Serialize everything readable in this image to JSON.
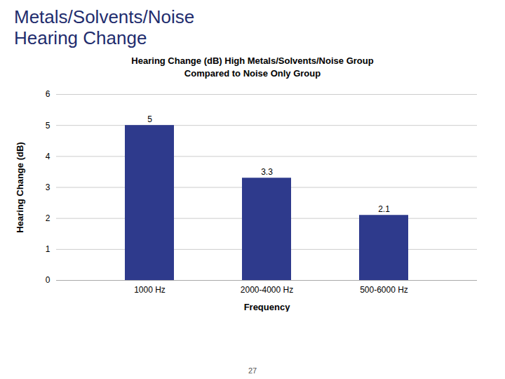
{
  "chart_data": {
    "type": "bar",
    "title": "Metals/Solvents/Noise\nHearing Change",
    "subtitle": "Hearing Change (dB) High Metals/Solvents/Noise Group\nCompared to Noise Only Group",
    "categories": [
      "1000 Hz",
      "2000-4000 Hz",
      "500-6000 Hz"
    ],
    "values": [
      5.0,
      3.3,
      2.1
    ],
    "color": "#2E3A8C",
    "xlabel": "Frequency",
    "ylabel": "Hearing Change (dB)",
    "ylim": [
      0,
      6
    ],
    "yticks": [
      0,
      1,
      2,
      3,
      4,
      5,
      6
    ],
    "grid": true,
    "data_labels": true,
    "annotations": [
      "27"
    ]
  }
}
